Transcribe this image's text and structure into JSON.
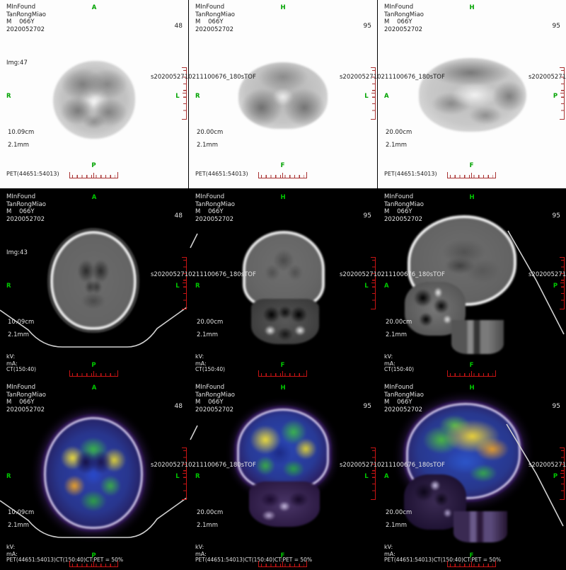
{
  "shared": {
    "vendor": "MInFound",
    "patient_name": "TanRongMiao",
    "patient_info": "M    066Y",
    "study_id": "2020052702",
    "series_id": "s2020052710211100676_180sTOF",
    "kv_label": "kV:",
    "ma_label": "mA:",
    "colors": {
      "marker_green_light_bg": "#00a300",
      "marker_green_dark_bg": "#00c800",
      "ruler_red_light_bg": "#a83232",
      "ruler_red_dark_bg": "#c81414",
      "pet_panel_background": "#fdfdfd",
      "ct_panel_background": "#000000",
      "fused_skull_lavender": "#cec4ea"
    }
  },
  "panels": [
    {
      "scene": "pet-axial",
      "theme": "light",
      "view": "axial",
      "slice": "48",
      "img_label": "Img:47",
      "fov": "10.09cm",
      "thickness": "2.1mm",
      "modality": "PET(44651:54013)",
      "show_kv": false,
      "orient": {
        "top": "A",
        "left": "R",
        "right": "L",
        "bottom": "P"
      }
    },
    {
      "scene": "pet-coronal",
      "theme": "light",
      "view": "coronal",
      "slice": "95",
      "img_label": null,
      "fov": "20.00cm",
      "thickness": "2.1mm",
      "modality": "PET(44651:54013)",
      "show_kv": false,
      "orient": {
        "top": "H",
        "left": "R",
        "right": "L",
        "bottom": "F"
      }
    },
    {
      "scene": "pet-sagittal",
      "theme": "light",
      "view": "sagittal",
      "slice": "95",
      "img_label": null,
      "fov": "20.00cm",
      "thickness": "2.1mm",
      "modality": "PET(44651:54013)",
      "show_kv": false,
      "orient": {
        "top": "H",
        "left": "A",
        "right": "P",
        "bottom": "F"
      }
    },
    {
      "scene": "ct-axial",
      "theme": "dark",
      "view": "axial",
      "slice": "48",
      "img_label": "Img:43",
      "fov": "10.09cm",
      "thickness": "2.1mm",
      "modality": "CT(150:40)",
      "show_kv": true,
      "orient": {
        "top": "A",
        "left": "R",
        "right": "L",
        "bottom": "P"
      }
    },
    {
      "scene": "ct-coronal",
      "theme": "dark",
      "view": "coronal",
      "slice": "95",
      "img_label": null,
      "fov": "20.00cm",
      "thickness": "2.1mm",
      "modality": "CT(150:40)",
      "show_kv": true,
      "orient": {
        "top": "H",
        "left": "R",
        "right": "L",
        "bottom": "F"
      }
    },
    {
      "scene": "ct-sagittal",
      "theme": "dark",
      "view": "sagittal",
      "slice": "95",
      "img_label": null,
      "fov": "20.00cm",
      "thickness": "2.1mm",
      "modality": "CT(150:40)",
      "show_kv": true,
      "orient": {
        "top": "H",
        "left": "A",
        "right": "P",
        "bottom": "F"
      }
    },
    {
      "scene": "fused-axial",
      "theme": "dark",
      "view": "axial",
      "slice": "48",
      "img_label": null,
      "fov": "10.09cm",
      "thickness": "2.1mm",
      "modality": "PET(44651:54013)CT(150:40)CT:PET = 50%",
      "show_kv": true,
      "orient": {
        "top": "A",
        "left": "R",
        "right": "L",
        "bottom": "P"
      }
    },
    {
      "scene": "fused-coronal",
      "theme": "dark",
      "view": "coronal",
      "slice": "95",
      "img_label": null,
      "fov": "20.00cm",
      "thickness": "2.1mm",
      "modality": "PET(44651:54013)CT(150:40)CT:PET = 50%",
      "show_kv": true,
      "orient": {
        "top": "H",
        "left": "R",
        "right": "L",
        "bottom": "F"
      }
    },
    {
      "scene": "fused-sagittal",
      "theme": "dark",
      "view": "sagittal",
      "slice": "95",
      "img_label": null,
      "fov": "20.00cm",
      "thickness": "2.1mm",
      "modality": "PET(44651:54013)CT(150:40)CT:PET = 50%",
      "show_kv": true,
      "orient": {
        "top": "H",
        "left": "A",
        "right": "P",
        "bottom": "F"
      }
    }
  ]
}
